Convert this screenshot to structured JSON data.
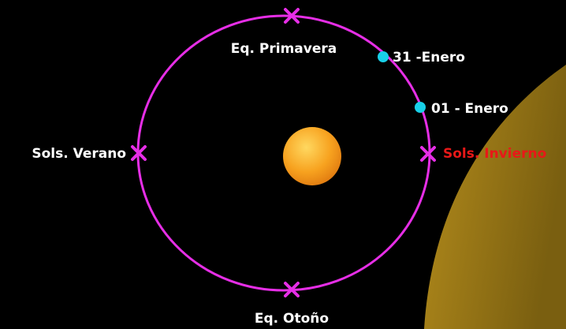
{
  "nodes": [
    {
      "label": "Eq. Primavera"
    },
    {
      "label": "Sols. Verano"
    },
    {
      "label": "Sols. Invierno"
    },
    {
      "label": "Eq. Otoño"
    },
    {
      "label": "31 -Enero"
    },
    {
      "label": "01 - Enero"
    }
  ]
}
